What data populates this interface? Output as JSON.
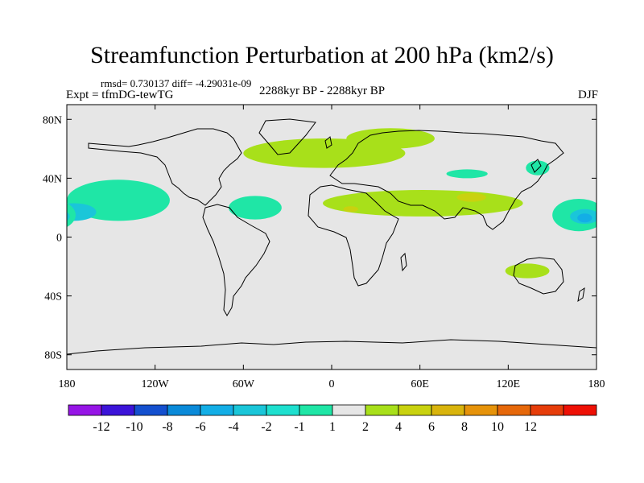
{
  "title": "Streamfunction Perturbation at 200 hPa (km2/s)",
  "stats": "rmsd= 0.730137 diff= -4.29031e-09",
  "experiment": "Expt = tfmDG-tewTG",
  "period": "2288kyr BP - 2288kyr BP",
  "season": "DJF",
  "map": {
    "projection": "cylindrical equidistant",
    "lon_range": [
      -180,
      180
    ],
    "lat_range": [
      -90,
      90
    ],
    "background": "#e6e6e6",
    "lat_ticks": [
      {
        "value": 80,
        "label": "80N"
      },
      {
        "value": 40,
        "label": "40N"
      },
      {
        "value": 0,
        "label": "0"
      },
      {
        "value": -40,
        "label": "40S"
      },
      {
        "value": -80,
        "label": "80S"
      }
    ],
    "lon_ticks": [
      {
        "value": -180,
        "label": "180"
      },
      {
        "value": -120,
        "label": "120W"
      },
      {
        "value": -60,
        "label": "60W"
      },
      {
        "value": 0,
        "label": "0"
      },
      {
        "value": 60,
        "label": "60E"
      },
      {
        "value": 120,
        "label": "120E"
      },
      {
        "value": 180,
        "label": "180"
      }
    ],
    "anomalies": [
      {
        "name": "north-atlantic-europe-positive",
        "level": 2,
        "center": [
          -5,
          57
        ],
        "radius": [
          55,
          10
        ]
      },
      {
        "name": "northeast-europe-positive",
        "level": 2,
        "center": [
          40,
          67
        ],
        "radius": [
          30,
          7
        ]
      },
      {
        "name": "eurasia-tropical-positive-band",
        "level": 2,
        "center": [
          62,
          23
        ],
        "radius": [
          68,
          9
        ]
      },
      {
        "name": "asia-positive-core",
        "level": 4,
        "center": [
          95,
          27
        ],
        "radius": [
          10,
          3
        ]
      },
      {
        "name": "africa-positive-core",
        "level": 4,
        "center": [
          13,
          19
        ],
        "radius": [
          5,
          2
        ]
      },
      {
        "name": "australia-positive",
        "level": 2,
        "center": [
          133,
          -23
        ],
        "radius": [
          15,
          5
        ]
      },
      {
        "name": "east-pacific-negative",
        "level": -2,
        "center": [
          -145,
          25
        ],
        "radius": [
          35,
          14
        ]
      },
      {
        "name": "east-pacific-negative-core",
        "level": -4,
        "center": [
          -175,
          17
        ],
        "radius": [
          15,
          6
        ]
      },
      {
        "name": "caribbean-negative",
        "level": -2,
        "center": [
          -52,
          20
        ],
        "radius": [
          18,
          8
        ]
      },
      {
        "name": "west-pacific-negative",
        "level": -2,
        "center": [
          168,
          15
        ],
        "radius": [
          18,
          11
        ]
      },
      {
        "name": "west-pacific-negative-core",
        "level": -4,
        "center": [
          172,
          14
        ],
        "radius": [
          10,
          5
        ]
      },
      {
        "name": "west-pacific-negative-inner",
        "level": -6,
        "center": [
          172,
          13
        ],
        "radius": [
          5,
          3
        ]
      },
      {
        "name": "japan-negative",
        "level": -2,
        "center": [
          140,
          47
        ],
        "radius": [
          8,
          5
        ]
      },
      {
        "name": "central-asia-negative",
        "level": -2,
        "center": [
          92,
          43
        ],
        "radius": [
          14,
          3
        ]
      }
    ]
  },
  "colorbar": {
    "colors": [
      "#9615e6",
      "#3c14d9",
      "#1450cf",
      "#0a8ad9",
      "#13aee6",
      "#1ac6d9",
      "#1ee0cf",
      "#1fe6a6",
      "#e6e6e6",
      "#a8e01a",
      "#c9d20f",
      "#d9b40c",
      "#e6930a",
      "#e6680a",
      "#e63d0a",
      "#ee1005"
    ],
    "labels": [
      "-12",
      "-10",
      "-8",
      "-6",
      "-4",
      "-2",
      "-1",
      "1",
      "2",
      "4",
      "6",
      "8",
      "10",
      "12"
    ]
  }
}
